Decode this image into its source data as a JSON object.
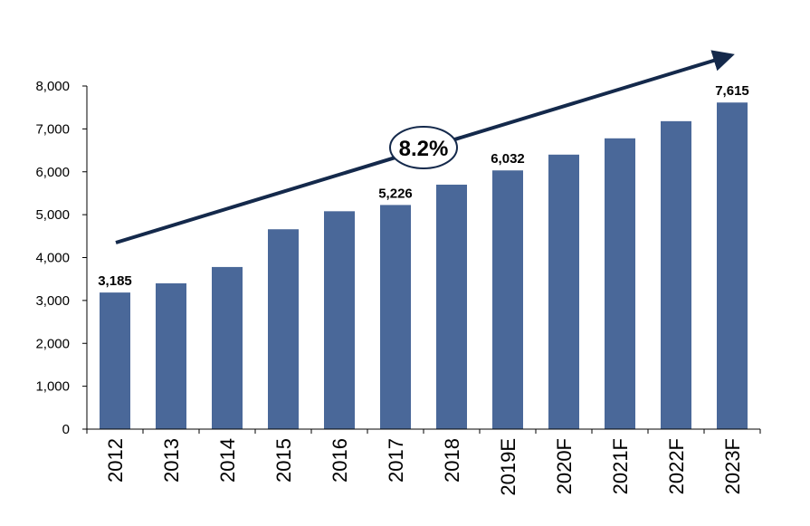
{
  "colors": {
    "bar": "#4a6899",
    "trend_arrow": "#14294b",
    "axis": "#000000"
  },
  "chart_data": {
    "type": "bar",
    "categories": [
      "2012",
      "2013",
      "2014",
      "2015",
      "2016",
      "2017",
      "2018",
      "2019E",
      "2020F",
      "2021F",
      "2022F",
      "2023F"
    ],
    "values": [
      3185,
      3400,
      3780,
      4660,
      5080,
      5226,
      5700,
      6032,
      6400,
      6780,
      7180,
      7615
    ],
    "data_labels": [
      {
        "category": "2012",
        "text": "3,185"
      },
      {
        "category": "2017",
        "text": "5,226"
      },
      {
        "category": "2019E",
        "text": "6,032"
      },
      {
        "category": "2023F",
        "text": "7,615"
      }
    ],
    "ylim": [
      0,
      8000
    ],
    "yticks": [
      0,
      1000,
      2000,
      3000,
      4000,
      5000,
      6000,
      7000,
      8000
    ],
    "ytick_labels": [
      "0",
      "1,000",
      "2,000",
      "3,000",
      "4,000",
      "5,000",
      "6,000",
      "7,000",
      "8,000"
    ],
    "grid": false,
    "annotation": {
      "text": "8.2%"
    }
  }
}
